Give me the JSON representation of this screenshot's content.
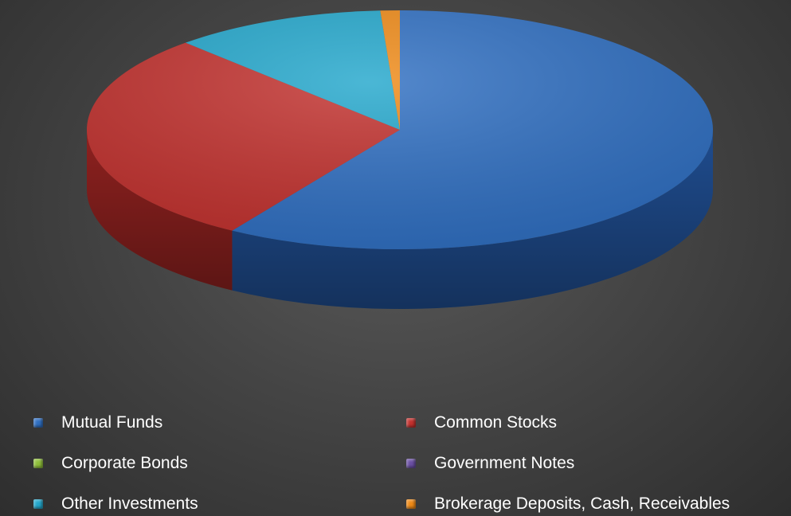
{
  "chart_data": {
    "type": "pie",
    "style": "3d",
    "legend_position": "bottom",
    "series": [
      {
        "name": "Mutual Funds",
        "value": 59.0,
        "color": "#2f6fc2",
        "side_color": "#1f4c8e"
      },
      {
        "name": "Common Stocks",
        "value": 29.0,
        "color": "#c2312e",
        "side_color": "#8e211f"
      },
      {
        "name": "Corporate Bonds",
        "value": 0.0,
        "color": "#8fbf3a",
        "side_color": "#5f8a22"
      },
      {
        "name": "Government Notes",
        "value": 0.0,
        "color": "#6a4fa3",
        "side_color": "#47357a"
      },
      {
        "name": "Other Investments",
        "value": 11.0,
        "color": "#23a7cc",
        "side_color": "#177894"
      },
      {
        "name": "Brokerage Deposits, Cash, Receivables",
        "value": 1.0,
        "color": "#ef8a17",
        "side_color": "#b0630c"
      }
    ]
  }
}
